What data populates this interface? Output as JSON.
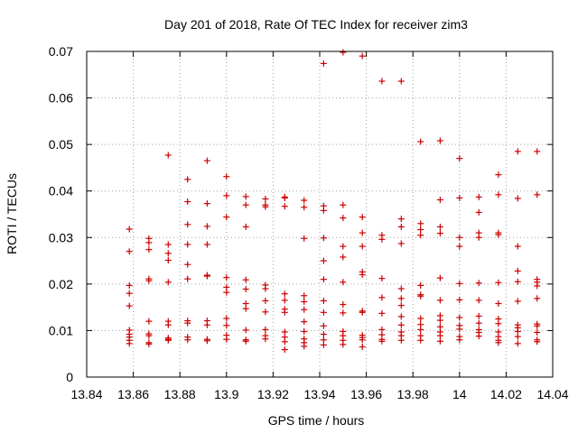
{
  "chart_data": {
    "type": "scatter",
    "title": "Day 201 of 2018, Rate Of TEC Index for receiver zim3",
    "xlabel": "GPS time / hours",
    "ylabel": "ROTI / TECUs",
    "xlim": [
      13.84,
      14.04
    ],
    "ylim": [
      0,
      0.07
    ],
    "x_ticks": [
      13.84,
      13.86,
      13.88,
      13.9,
      13.92,
      13.94,
      13.96,
      13.98,
      14,
      14.02,
      14.04
    ],
    "x_tick_labels": [
      "13.84",
      "13.86",
      "13.88",
      "13.9",
      "13.92",
      "13.94",
      "13.96",
      "13.98",
      "14",
      "14.02",
      "14.04"
    ],
    "y_ticks": [
      0,
      0.01,
      0.02,
      0.03,
      0.04,
      0.05,
      0.06,
      0.07
    ],
    "y_tick_labels": [
      "0",
      "0.01",
      "0.02",
      "0.03",
      "0.04",
      "0.05",
      "0.06",
      "0.07"
    ],
    "grid": true,
    "marker": "plus",
    "marker_color": "#cc0000",
    "series": [
      {
        "x": 13.8583,
        "y": [
          0.0318,
          0.027,
          0.0197,
          0.018,
          0.0153,
          0.0101,
          0.0092,
          0.0086,
          0.0079,
          0.0072
        ]
      },
      {
        "x": 13.8667,
        "y": [
          0.0298,
          0.0289,
          0.0274,
          0.0211,
          0.0207,
          0.012,
          0.0093,
          0.0089,
          0.0074,
          0.0071
        ]
      },
      {
        "x": 13.875,
        "y": [
          0.0477,
          0.0285,
          0.0266,
          0.0251,
          0.0204,
          0.012,
          0.0112,
          0.0084,
          0.0081,
          0.0079
        ]
      },
      {
        "x": 13.8833,
        "y": [
          0.0425,
          0.0377,
          0.0328,
          0.0285,
          0.0242,
          0.0211,
          0.0121,
          0.0116,
          0.0086,
          0.008
        ]
      },
      {
        "x": 13.8917,
        "y": [
          0.0465,
          0.0373,
          0.0324,
          0.0285,
          0.0219,
          0.0217,
          0.0121,
          0.0112,
          0.0081,
          0.0078
        ]
      },
      {
        "x": 13.9,
        "y": [
          0.0431,
          0.039,
          0.0344,
          0.0214,
          0.0193,
          0.0182,
          0.0126,
          0.0111,
          0.009,
          0.0081
        ]
      },
      {
        "x": 13.9083,
        "y": [
          0.0388,
          0.037,
          0.0323,
          0.0209,
          0.0189,
          0.0158,
          0.0147,
          0.0101,
          0.008,
          0.0077
        ]
      },
      {
        "x": 13.9167,
        "y": [
          0.0383,
          0.037,
          0.0366,
          0.0198,
          0.019,
          0.0164,
          0.014,
          0.0102,
          0.0089,
          0.0082
        ]
      },
      {
        "x": 13.925,
        "y": [
          0.0387,
          0.0385,
          0.0367,
          0.0179,
          0.0165,
          0.0146,
          0.0139,
          0.0097,
          0.0086,
          0.0076,
          0.0059
        ]
      },
      {
        "x": 13.9333,
        "y": [
          0.038,
          0.0365,
          0.0298,
          0.0175,
          0.0162,
          0.0145,
          0.0119,
          0.0098,
          0.0082,
          0.0074,
          0.0066
        ]
      },
      {
        "x": 13.9417,
        "y": [
          0.0674,
          0.0368,
          0.0358,
          0.0299,
          0.025,
          0.021,
          0.0164,
          0.0139,
          0.011,
          0.0092,
          0.008,
          0.0069
        ]
      },
      {
        "x": 13.95,
        "y": [
          0.0698,
          0.037,
          0.0342,
          0.0281,
          0.0258,
          0.0204,
          0.0156,
          0.0138,
          0.0098,
          0.0089,
          0.0079,
          0.007
        ]
      },
      {
        "x": 13.9583,
        "y": [
          0.069,
          0.0344,
          0.031,
          0.0281,
          0.0226,
          0.022,
          0.0142,
          0.0139,
          0.009,
          0.0085,
          0.008,
          0.0065
        ]
      },
      {
        "x": 13.9667,
        "y": [
          0.0636,
          0.0305,
          0.0296,
          0.0212,
          0.0171,
          0.0137,
          0.0102,
          0.0091,
          0.0081,
          0.0077
        ]
      },
      {
        "x": 13.975,
        "y": [
          0.0636,
          0.034,
          0.0323,
          0.0287,
          0.019,
          0.0169,
          0.0154,
          0.013,
          0.0112,
          0.0097,
          0.0089,
          0.0079
        ]
      },
      {
        "x": 13.9833,
        "y": [
          0.0506,
          0.033,
          0.0317,
          0.0305,
          0.0197,
          0.0177,
          0.0174,
          0.0126,
          0.0113,
          0.0102,
          0.0089,
          0.0079
        ]
      },
      {
        "x": 13.9917,
        "y": [
          0.0508,
          0.0381,
          0.0323,
          0.0309,
          0.0213,
          0.0165,
          0.0132,
          0.0122,
          0.0108,
          0.0097,
          0.0089,
          0.0077
        ]
      },
      {
        "x": 14.0,
        "y": [
          0.047,
          0.0385,
          0.03,
          0.0281,
          0.0201,
          0.0166,
          0.0128,
          0.0111,
          0.0103,
          0.0087,
          0.008
        ]
      },
      {
        "x": 14.0083,
        "y": [
          0.0387,
          0.0354,
          0.031,
          0.03,
          0.0202,
          0.0165,
          0.0131,
          0.0116,
          0.0102,
          0.0096,
          0.0088
        ]
      },
      {
        "x": 14.0167,
        "y": [
          0.0435,
          0.0392,
          0.031,
          0.0306,
          0.0203,
          0.0158,
          0.0125,
          0.0115,
          0.0097,
          0.0087,
          0.0079,
          0.0074
        ]
      },
      {
        "x": 14.025,
        "y": [
          0.0485,
          0.0384,
          0.0281,
          0.0228,
          0.0205,
          0.0163,
          0.0112,
          0.0106,
          0.0098,
          0.0087,
          0.0072
        ]
      },
      {
        "x": 14.0333,
        "y": [
          0.0485,
          0.0392,
          0.021,
          0.0204,
          0.0196,
          0.0169,
          0.0114,
          0.011,
          0.0096,
          0.008,
          0.0076
        ]
      }
    ]
  }
}
